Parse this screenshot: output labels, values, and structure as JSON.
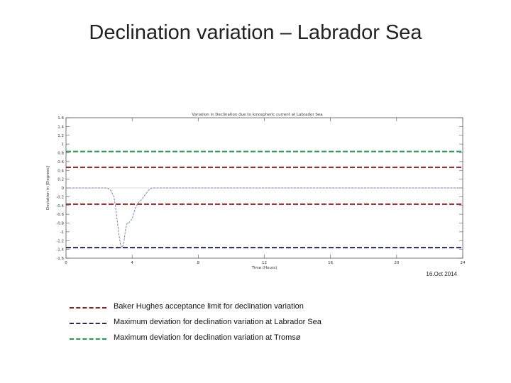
{
  "slide": {
    "title": "Declination variation – Labrador Sea",
    "date": "16.Oct 2014"
  },
  "colors": {
    "red_dashed": "#9b1a1a",
    "navy_dashed": "#1f2a5a",
    "green_dashed": "#1aa34a",
    "curve": "#7a86b8",
    "zero_line": "#cccccc",
    "frame": "#555555"
  },
  "legend": [
    {
      "label": "Baker Hughes acceptance limit for declination variation",
      "color": "#9b1a1a"
    },
    {
      "label": "Maximum deviation for declination variation at Labrador Sea",
      "color": "#1f2a5a"
    },
    {
      "label": "Maximum deviation for declination variation at Tromsø",
      "color": "#1aa34a"
    }
  ],
  "chart_data": {
    "type": "line",
    "title": "Variation in Declination due to ionospheric current at Labrador Sea",
    "xlabel": "Time (Hours)",
    "ylabel": "Deviation in [Degrees]",
    "xlim": [
      0,
      24
    ],
    "ylim": [
      -1.6,
      1.6
    ],
    "x_ticks": [
      0,
      4,
      8,
      12,
      16,
      20,
      24
    ],
    "y_ticks": [
      1.6,
      1.4,
      1.2,
      1,
      0.8,
      0.6,
      0.4,
      0.2,
      0,
      -0.2,
      -0.4,
      -0.6,
      -0.8,
      -1,
      -1.2,
      -1.4,
      -1.6
    ],
    "grid": false,
    "reference_lines": [
      {
        "y": 0.83,
        "color": "#1aa34a"
      },
      {
        "y": 0.47,
        "color": "#9b1a1a"
      },
      {
        "y": -0.37,
        "color": "#9b1a1a"
      },
      {
        "y": -1.36,
        "color": "#1f2a5a"
      }
    ],
    "series": [
      {
        "x": [
          0,
          2.5,
          2.7,
          2.9,
          3.0,
          3.1,
          3.2,
          3.3,
          3.4,
          3.5,
          3.6,
          3.7,
          3.8,
          3.9,
          4.0,
          4.1,
          4.2,
          4.3,
          4.4,
          4.5,
          4.6,
          4.7,
          4.8,
          4.9,
          5.0,
          5.1,
          5.2,
          24
        ],
        "y": [
          0,
          0,
          -0.05,
          -0.2,
          -0.45,
          -0.75,
          -1.05,
          -1.3,
          -1.36,
          -1.25,
          -0.95,
          -0.8,
          -0.8,
          -0.75,
          -0.7,
          -0.58,
          -0.45,
          -0.38,
          -0.33,
          -0.3,
          -0.25,
          -0.2,
          -0.14,
          -0.1,
          -0.05,
          -0.02,
          0,
          0
        ]
      }
    ]
  }
}
